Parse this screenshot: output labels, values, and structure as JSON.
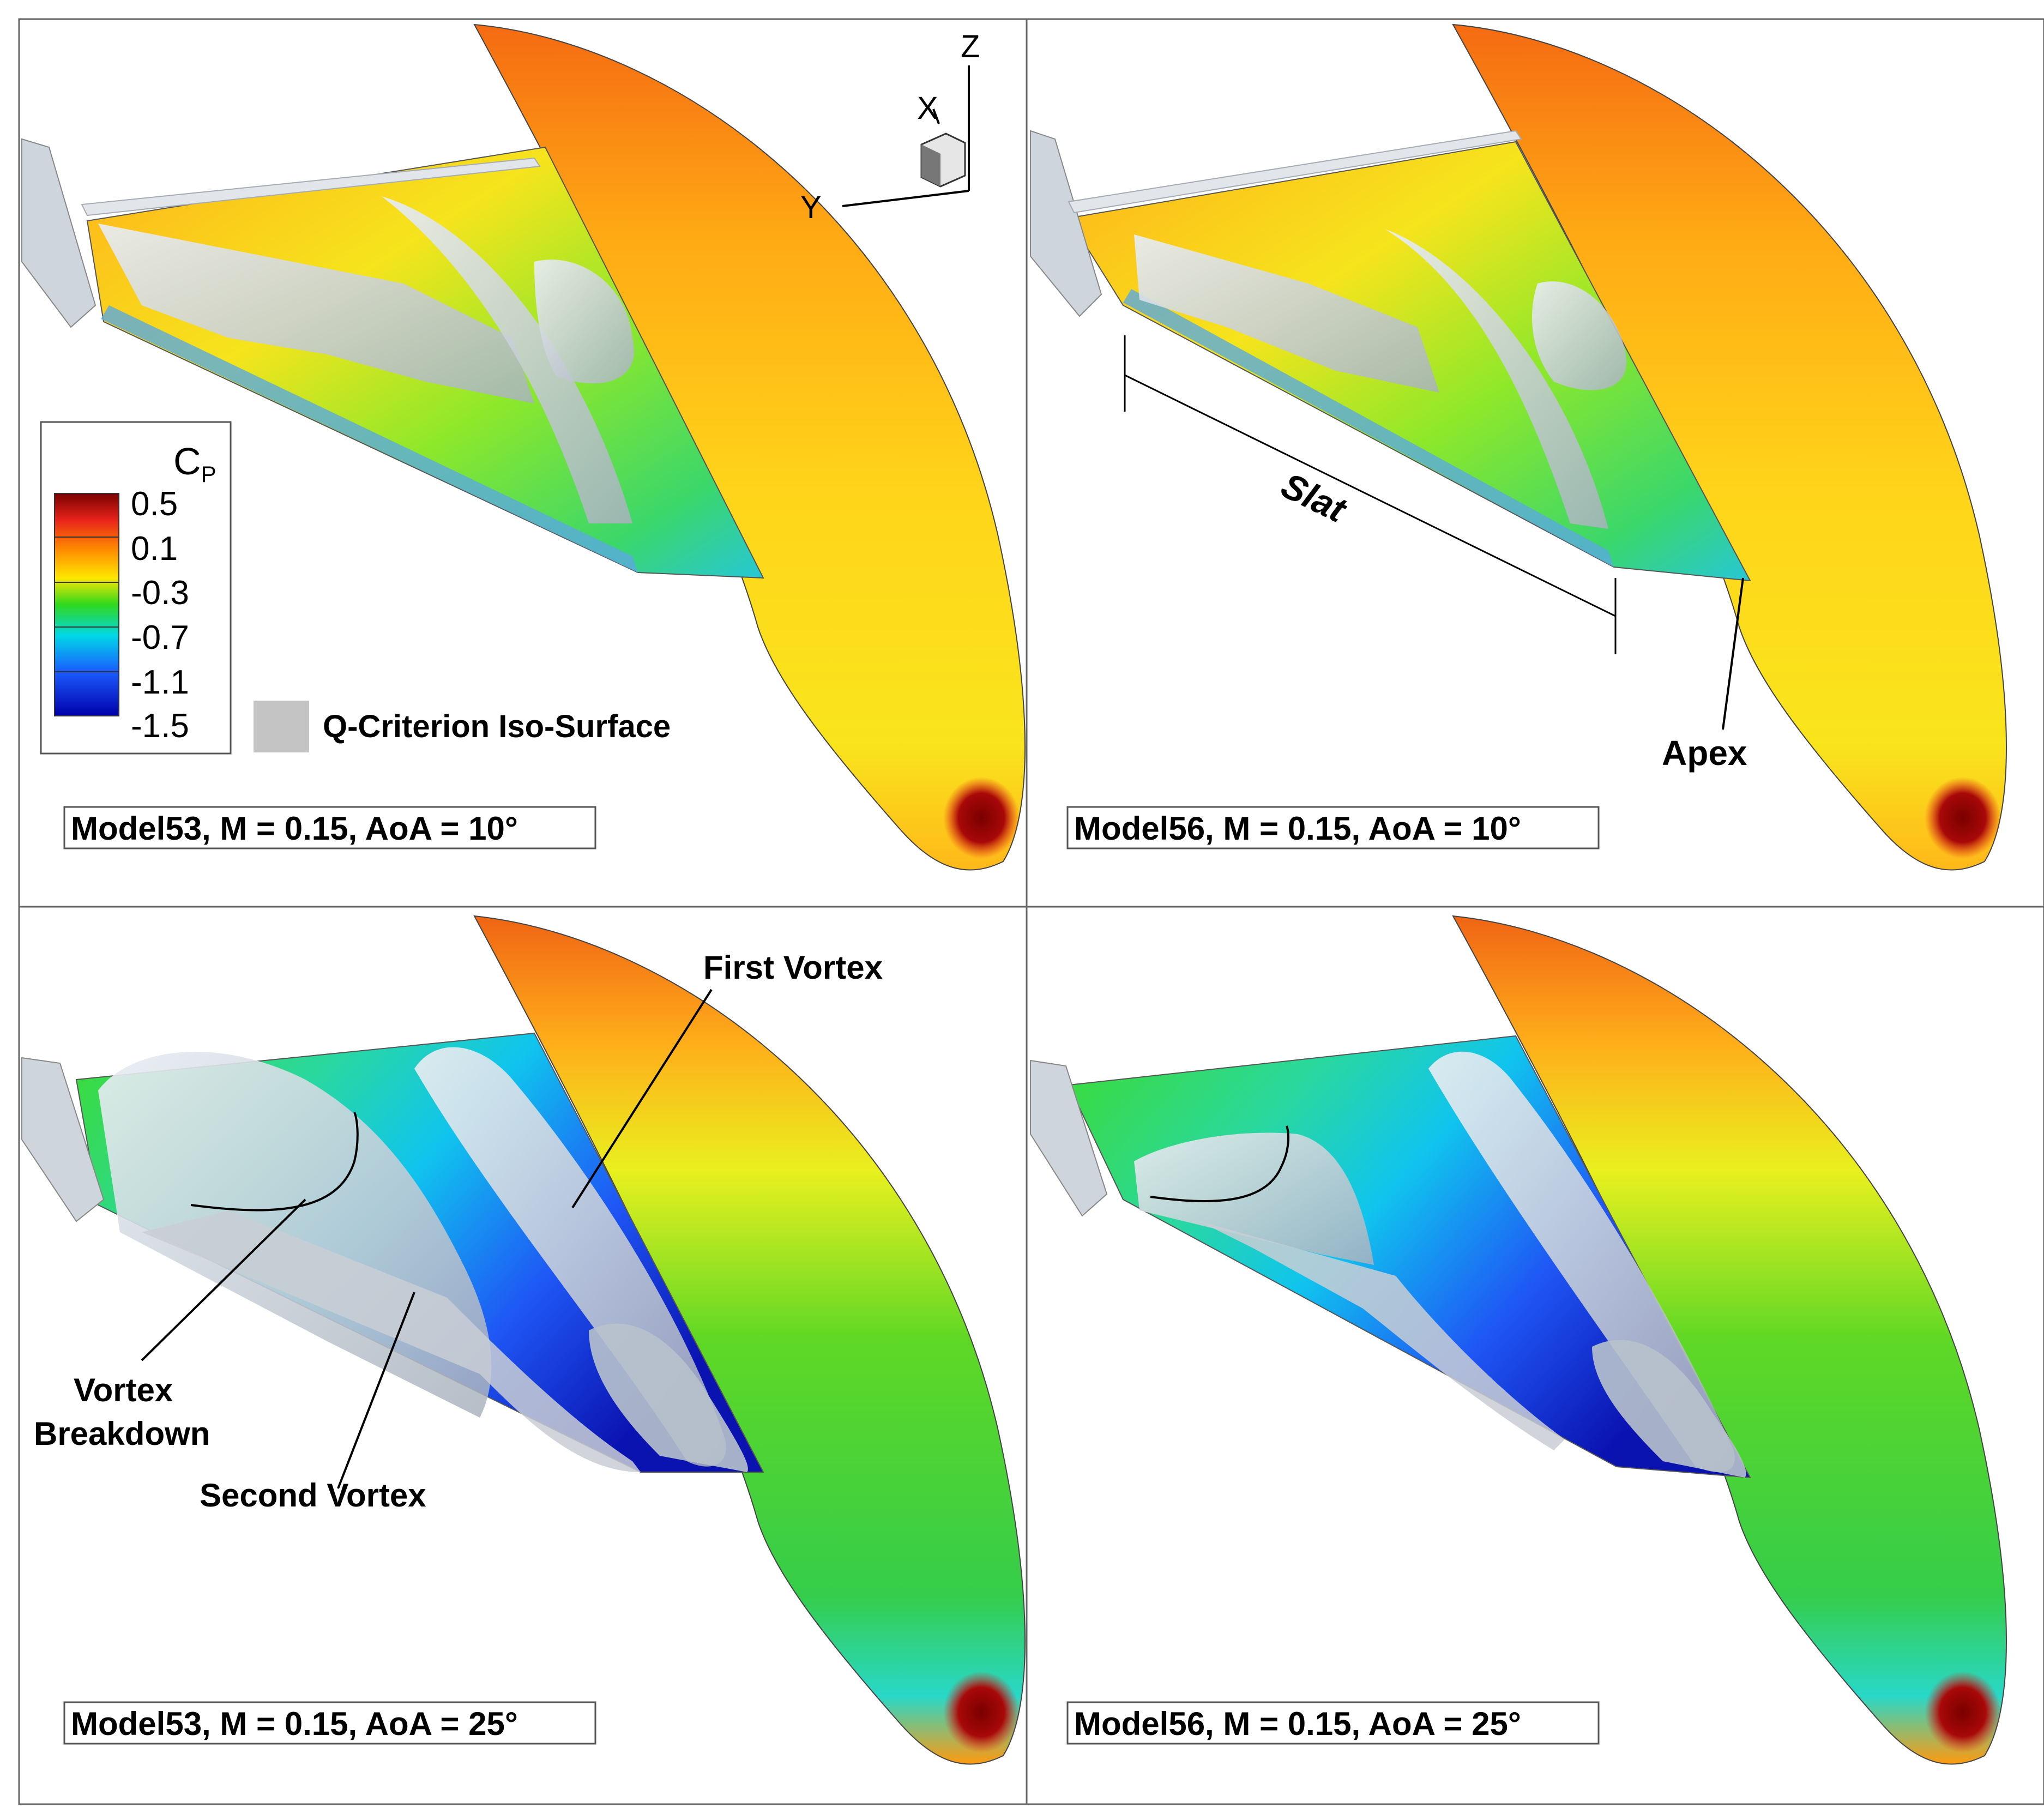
{
  "panels": [
    {
      "caption": "Model53, M = 0.15, AoA = 10°"
    },
    {
      "caption": "Model56, M = 0.15, AoA = 10°"
    },
    {
      "caption": "Model53, M = 0.15, AoA = 25°"
    },
    {
      "caption": "Model56, M = 0.15, AoA = 25°"
    }
  ],
  "axes_triad": {
    "x": "X",
    "y": "Y",
    "z": "Z"
  },
  "legend": {
    "title": "C",
    "title_sub": "P",
    "ticks": [
      "0.5",
      "0.1",
      "-0.3",
      "-0.7",
      "-1.1",
      "-1.5"
    ],
    "iso_label": "Q-Criterion Iso-Surface",
    "colors": [
      "#7a0000",
      "#e8231b",
      "#ff8a00",
      "#ffe600",
      "#2fd81c",
      "#00d8e8",
      "#1a5cff",
      "#0000a8"
    ],
    "iso_color": "#c4c4c4"
  },
  "annotations": {
    "slat": "Slat",
    "apex": "Apex",
    "first_vortex": "First Vortex",
    "vortex_breakdown_line1": "Vortex",
    "vortex_breakdown_line2": "Breakdown",
    "second_vortex": "Second Vortex"
  }
}
